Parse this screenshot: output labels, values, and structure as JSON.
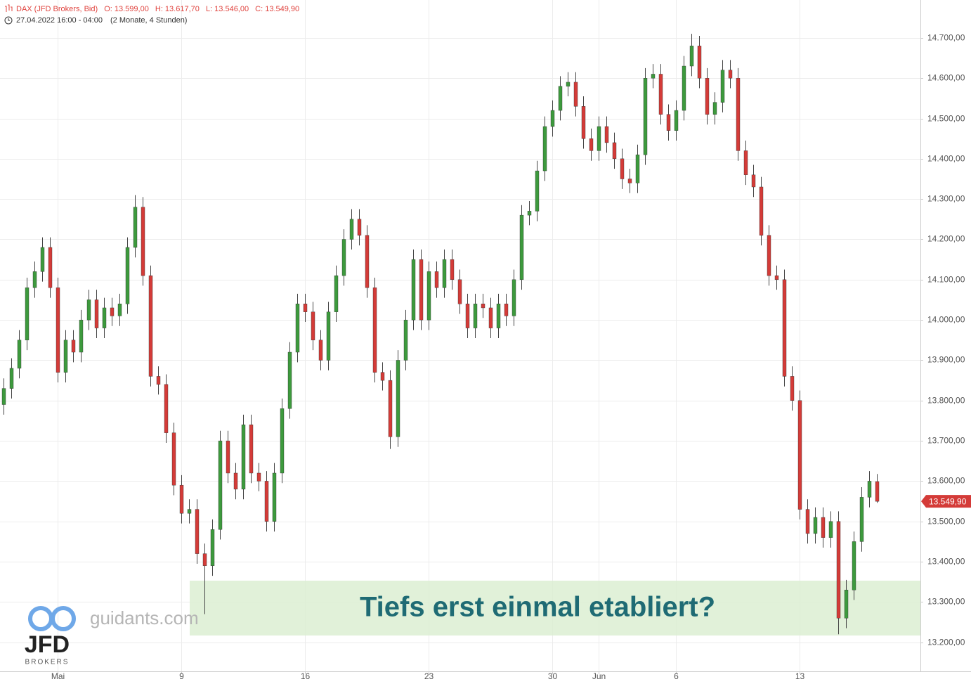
{
  "chart_data": {
    "type": "candlestick",
    "title": "DAX (JFD Brokers, Bid)",
    "ohlc_labels": [
      "O: 13.599,00",
      "H: 13.617,70",
      "L: 13.546,00",
      "C: 13.549,90"
    ],
    "subtitle": "27.04.2022 16:00 - 04:00",
    "period": "(2 Monate, 4 Stunden)",
    "annotation": "Tiefs erst einmal etabliert?",
    "watermark": "guidants.com",
    "logo": "JFD",
    "logo_sub": "BROKERS",
    "last_price_label": "13.549,90",
    "up_color": "#3d9a3d",
    "down_color": "#d43b38",
    "grid": true,
    "ylim": [
      13128,
      14794
    ],
    "yticks": [
      {
        "value": 13200,
        "label": "13.200,00"
      },
      {
        "value": 13300,
        "label": "13.300,00"
      },
      {
        "value": 13400,
        "label": "13.400,00"
      },
      {
        "value": 13500,
        "label": "13.500,00"
      },
      {
        "value": 13600,
        "label": "13.600,00"
      },
      {
        "value": 13700,
        "label": "13.700,00"
      },
      {
        "value": 13800,
        "label": "13.800,00"
      },
      {
        "value": 13900,
        "label": "13.900,00"
      },
      {
        "value": 14000,
        "label": "14.000,00"
      },
      {
        "value": 14100,
        "label": "14.100,00"
      },
      {
        "value": 14200,
        "label": "14.200,00"
      },
      {
        "value": 14300,
        "label": "14.300,00"
      },
      {
        "value": 14400,
        "label": "14.400,00"
      },
      {
        "value": 14500,
        "label": "14.500,00"
      },
      {
        "value": 14600,
        "label": "14.600,00"
      },
      {
        "value": 14700,
        "label": "14.700,00"
      }
    ],
    "categories": [
      null,
      null,
      null,
      null,
      null,
      null,
      null,
      "Mai",
      null,
      null,
      null,
      null,
      null,
      null,
      null,
      null,
      null,
      null,
      null,
      null,
      null,
      null,
      null,
      "9",
      null,
      null,
      null,
      null,
      null,
      null,
      null,
      null,
      null,
      null,
      null,
      null,
      null,
      null,
      null,
      "16",
      null,
      null,
      null,
      null,
      null,
      null,
      null,
      null,
      null,
      null,
      null,
      null,
      null,
      null,
      null,
      "23",
      null,
      null,
      null,
      null,
      null,
      null,
      null,
      null,
      null,
      null,
      null,
      null,
      null,
      null,
      null,
      "30",
      null,
      null,
      null,
      null,
      null,
      "Jun",
      null,
      null,
      null,
      null,
      null,
      null,
      null,
      null,
      null,
      "6",
      null,
      null,
      null,
      null,
      null,
      null,
      null,
      null,
      null,
      null,
      null,
      null,
      null,
      null,
      null,
      "13",
      null,
      null,
      null,
      null,
      null,
      null,
      null,
      null,
      null,
      null
    ],
    "open": [
      13790,
      13830,
      13880,
      13950,
      14080,
      14120,
      14180,
      14080,
      13870,
      13950,
      13920,
      14000,
      14050,
      13980,
      14030,
      14010,
      14040,
      14180,
      14280,
      14110,
      13860,
      13840,
      13720,
      13590,
      13520,
      13530,
      13420,
      13390,
      13480,
      13700,
      13620,
      13580,
      13740,
      13620,
      13600,
      13500,
      13620,
      13780,
      13920,
      14040,
      14020,
      13950,
      13900,
      14020,
      14110,
      14200,
      14250,
      14210,
      14080,
      13870,
      13850,
      13710,
      13900,
      14000,
      14150,
      14000,
      14120,
      14080,
      14150,
      14100,
      14040,
      13980,
      14040,
      14030,
      13980,
      14040,
      14010,
      14100,
      14260,
      14270,
      14370,
      14480,
      14520,
      14580,
      14590,
      14530,
      14450,
      14420,
      14480,
      14440,
      14400,
      14350,
      14340,
      14410,
      14600,
      14610,
      14510,
      14470,
      14520,
      14630,
      14680,
      14600,
      14510,
      14540,
      14620,
      14600,
      14420,
      14360,
      14330,
      14210,
      14110,
      14100,
      13860,
      13800,
      13530,
      13470,
      13510,
      13460,
      13500,
      13260,
      13330,
      13450,
      13560,
      13599
    ],
    "high": [
      13855,
      13905,
      13975,
      14105,
      14145,
      14205,
      14205,
      14105,
      13975,
      13975,
      14025,
      14075,
      14075,
      14055,
      14055,
      14065,
      14205,
      14310,
      14305,
      14135,
      13885,
      13865,
      13745,
      13615,
      13555,
      13555,
      13445,
      13505,
      13725,
      13725,
      13645,
      13765,
      13765,
      13645,
      13625,
      13645,
      13805,
      13945,
      14065,
      14065,
      14045,
      13975,
      14045,
      14135,
      14225,
      14275,
      14275,
      14235,
      14105,
      13895,
      13875,
      13925,
      14025,
      14175,
      14175,
      14145,
      14145,
      14175,
      14175,
      14125,
      14065,
      14065,
      14065,
      14055,
      14065,
      14065,
      14125,
      14285,
      14295,
      14395,
      14505,
      14545,
      14605,
      14615,
      14615,
      14555,
      14475,
      14505,
      14505,
      14465,
      14425,
      14375,
      14435,
      14625,
      14635,
      14635,
      14535,
      14545,
      14655,
      14710,
      14705,
      14625,
      14565,
      14645,
      14645,
      14625,
      14445,
      14385,
      14355,
      14235,
      14135,
      14125,
      13885,
      13825,
      13555,
      13535,
      13535,
      13525,
      13525,
      13355,
      13475,
      13585,
      13625,
      13617.7
    ],
    "low": [
      13765,
      13805,
      13855,
      13925,
      14055,
      14095,
      14055,
      13845,
      13845,
      13895,
      13895,
      13975,
      13955,
      13955,
      13985,
      13985,
      14015,
      14155,
      14085,
      13835,
      13815,
      13695,
      13565,
      13495,
      13495,
      13395,
      13270,
      13365,
      13455,
      13595,
      13555,
      13555,
      13595,
      13575,
      13475,
      13475,
      13595,
      13755,
      13895,
      13995,
      13925,
      13875,
      13875,
      13995,
      14085,
      14175,
      14185,
      14055,
      13845,
      13825,
      13680,
      13685,
      13875,
      13975,
      13975,
      13975,
      14055,
      14055,
      14075,
      14015,
      13955,
      13955,
      14005,
      13955,
      13955,
      13985,
      13985,
      14075,
      14235,
      14245,
      14345,
      14455,
      14495,
      14555,
      14505,
      14425,
      14395,
      14395,
      14415,
      14375,
      14325,
      14315,
      14315,
      14385,
      14575,
      14485,
      14445,
      14445,
      14495,
      14605,
      14575,
      14485,
      14485,
      14515,
      14575,
      14395,
      14335,
      14305,
      14185,
      14085,
      14075,
      13835,
      13775,
      13505,
      13445,
      13445,
      13435,
      13435,
      13220,
      13235,
      13305,
      13425,
      13535,
      13546
    ],
    "close": [
      13830,
      13880,
      13950,
      14080,
      14120,
      14180,
      14080,
      13870,
      13950,
      13920,
      14000,
      14050,
      13980,
      14030,
      14010,
      14040,
      14180,
      14280,
      14110,
      13860,
      13840,
      13720,
      13590,
      13520,
      13530,
      13420,
      13390,
      13480,
      13700,
      13620,
      13580,
      13740,
      13620,
      13600,
      13500,
      13620,
      13780,
      13920,
      14040,
      14020,
      13950,
      13900,
      14020,
      14110,
      14200,
      14250,
      14210,
      14080,
      13870,
      13850,
      13710,
      13900,
      14000,
      14150,
      14000,
      14120,
      14080,
      14150,
      14100,
      14040,
      13980,
      14040,
      14030,
      13980,
      14040,
      14010,
      14100,
      14260,
      14270,
      14370,
      14480,
      14520,
      14580,
      14590,
      14530,
      14450,
      14420,
      14480,
      14440,
      14400,
      14350,
      14340,
      14410,
      14600,
      14610,
      14510,
      14470,
      14520,
      14630,
      14680,
      14600,
      14510,
      14540,
      14620,
      14600,
      14420,
      14360,
      14330,
      14210,
      14110,
      14100,
      13860,
      13800,
      13530,
      13470,
      13510,
      13460,
      13500,
      13260,
      13330,
      13450,
      13560,
      13600,
      13549.9
    ]
  }
}
